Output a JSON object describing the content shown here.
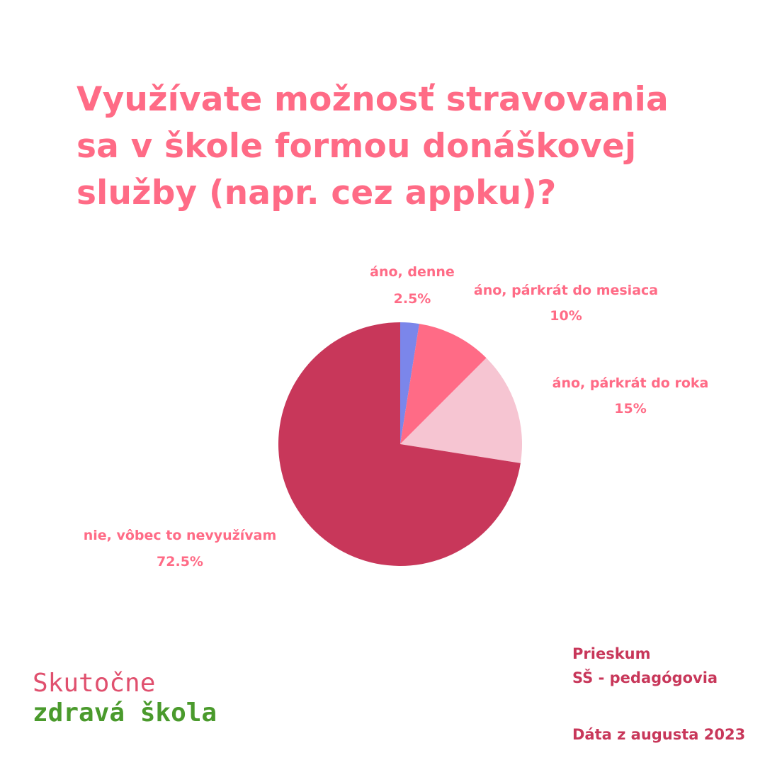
{
  "title": {
    "lines": [
      "Využívate možnosť stravovania",
      "sa v škole formou donáškovej",
      "služby (napr. cez appku)?"
    ]
  },
  "chart_data": {
    "type": "pie",
    "slices": [
      {
        "label": "áno, denne",
        "value": 2.5,
        "display": "2.5%",
        "color": "#7b86ea"
      },
      {
        "label": "áno, párkrát do mesiaca",
        "value": 10,
        "display": "10%",
        "color": "#ff6b86"
      },
      {
        "label": "áno, párkrát do roka",
        "value": 15,
        "display": "15%",
        "color": "#f6c5d2"
      },
      {
        "label": "nie, vôbec to nevyužívam",
        "value": 72.5,
        "display": "72.5%",
        "color": "#c8375a"
      }
    ]
  },
  "brand": {
    "line1": "Skutočne",
    "line2": "zdravá škola"
  },
  "info": {
    "line1": "Prieskum",
    "line2": "SŠ - pedagógovia",
    "date": "Dáta z augusta 2023"
  },
  "colors": {
    "title": "#ff6b86",
    "label": "#ff6b86",
    "info": "#c8375a",
    "brand_line1": "#e0506e",
    "brand_line2": "#4a9a2c"
  }
}
